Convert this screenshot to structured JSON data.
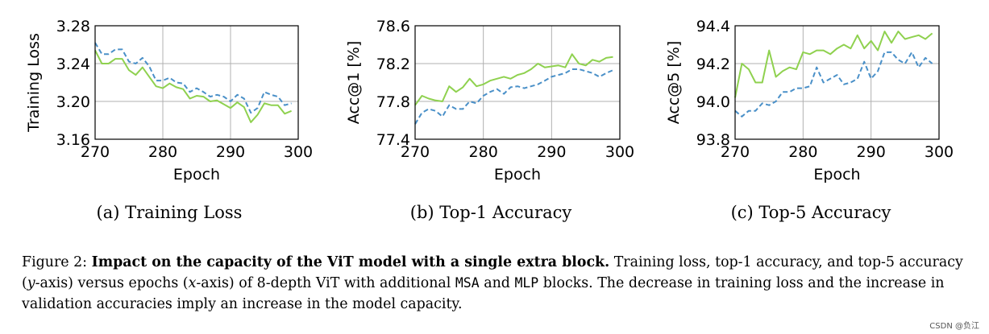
{
  "colors": {
    "series_a": "#8fd14f",
    "series_b": "#4a90c8"
  },
  "chart_data": [
    {
      "type": "line",
      "title": "",
      "subcaption": "(a) Training Loss",
      "xlabel": "Epoch",
      "ylabel": "Training Loss",
      "xlim": [
        270,
        300
      ],
      "ylim": [
        3.16,
        3.28
      ],
      "xticks": [
        270,
        280,
        290,
        300
      ],
      "yticks": [
        3.16,
        3.2,
        3.24,
        3.28
      ],
      "ytick_labels": [
        "3.16",
        "3.20",
        "3.24",
        "3.28"
      ],
      "x": [
        270,
        271,
        272,
        273,
        274,
        275,
        276,
        277,
        278,
        279,
        280,
        281,
        282,
        283,
        284,
        285,
        286,
        287,
        288,
        289,
        290,
        291,
        292,
        293,
        294,
        295,
        296,
        297,
        298,
        299
      ],
      "series": [
        {
          "name": "solid",
          "style": "solid",
          "values": [
            3.254,
            3.24,
            3.24,
            3.245,
            3.245,
            3.233,
            3.228,
            3.236,
            3.226,
            3.216,
            3.214,
            3.219,
            3.215,
            3.213,
            3.203,
            3.206,
            3.205,
            3.2,
            3.201,
            3.197,
            3.193,
            3.199,
            3.194,
            3.178,
            3.186,
            3.198,
            3.196,
            3.196,
            3.187,
            3.19
          ]
        },
        {
          "name": "dashed",
          "style": "dashed",
          "values": [
            3.262,
            3.25,
            3.25,
            3.255,
            3.255,
            3.242,
            3.24,
            3.246,
            3.237,
            3.222,
            3.222,
            3.225,
            3.22,
            3.219,
            3.21,
            3.214,
            3.21,
            3.205,
            3.207,
            3.205,
            3.2,
            3.207,
            3.203,
            3.188,
            3.193,
            3.21,
            3.207,
            3.205,
            3.196,
            3.198
          ]
        }
      ]
    },
    {
      "type": "line",
      "title": "",
      "subcaption": "(b) Top-1 Accuracy",
      "xlabel": "Epoch",
      "ylabel": "Acc@1 [%]",
      "xlim": [
        270,
        300
      ],
      "ylim": [
        77.4,
        78.6
      ],
      "xticks": [
        270,
        280,
        290,
        300
      ],
      "yticks": [
        77.4,
        77.8,
        78.2,
        78.6
      ],
      "ytick_labels": [
        "77.4",
        "77.8",
        "78.2",
        "78.6"
      ],
      "x": [
        270,
        271,
        272,
        273,
        274,
        275,
        276,
        277,
        278,
        279,
        280,
        281,
        282,
        283,
        284,
        285,
        286,
        287,
        288,
        289,
        290,
        291,
        292,
        293,
        294,
        295,
        296,
        297,
        298,
        299
      ],
      "series": [
        {
          "name": "solid",
          "style": "solid",
          "values": [
            77.76,
            77.86,
            77.83,
            77.81,
            77.8,
            77.96,
            77.9,
            77.95,
            78.04,
            77.96,
            77.98,
            78.02,
            78.04,
            78.06,
            78.04,
            78.08,
            78.1,
            78.14,
            78.2,
            78.16,
            78.17,
            78.18,
            78.16,
            78.3,
            78.2,
            78.18,
            78.24,
            78.22,
            78.26,
            78.27
          ]
        },
        {
          "name": "dashed",
          "style": "dashed",
          "values": [
            77.56,
            77.68,
            77.72,
            77.7,
            77.64,
            77.76,
            77.72,
            77.72,
            77.8,
            77.78,
            77.86,
            77.9,
            77.93,
            77.88,
            77.95,
            77.96,
            77.94,
            77.96,
            77.98,
            78.02,
            78.06,
            78.08,
            78.1,
            78.14,
            78.14,
            78.12,
            78.1,
            78.06,
            78.1,
            78.13
          ]
        }
      ]
    },
    {
      "type": "line",
      "title": "",
      "subcaption": "(c) Top-5 Accuracy",
      "xlabel": "Epoch",
      "ylabel": "Acc@5 [%]",
      "xlim": [
        270,
        300
      ],
      "ylim": [
        93.8,
        94.4
      ],
      "xticks": [
        270,
        280,
        290,
        300
      ],
      "yticks": [
        93.8,
        94.0,
        94.2,
        94.4
      ],
      "ytick_labels": [
        "93.8",
        "94.0",
        "94.2",
        "94.4"
      ],
      "x": [
        270,
        271,
        272,
        273,
        274,
        275,
        276,
        277,
        278,
        279,
        280,
        281,
        282,
        283,
        284,
        285,
        286,
        287,
        288,
        289,
        290,
        291,
        292,
        293,
        294,
        295,
        296,
        297,
        298,
        299
      ],
      "series": [
        {
          "name": "solid",
          "style": "solid",
          "values": [
            94.02,
            94.2,
            94.17,
            94.1,
            94.1,
            94.27,
            94.13,
            94.16,
            94.18,
            94.17,
            94.26,
            94.25,
            94.27,
            94.27,
            94.25,
            94.28,
            94.3,
            94.28,
            94.35,
            94.28,
            94.32,
            94.27,
            94.37,
            94.31,
            94.37,
            94.33,
            94.34,
            94.35,
            94.33,
            94.36
          ]
        },
        {
          "name": "dashed",
          "style": "dashed",
          "values": [
            93.95,
            93.92,
            93.95,
            93.95,
            93.99,
            93.98,
            94.0,
            94.05,
            94.05,
            94.07,
            94.07,
            94.08,
            94.18,
            94.1,
            94.12,
            94.14,
            94.09,
            94.1,
            94.12,
            94.21,
            94.12,
            94.16,
            94.26,
            94.26,
            94.22,
            94.2,
            94.26,
            94.18,
            94.23,
            94.2
          ]
        }
      ]
    }
  ],
  "caption": {
    "label": "Figure 2:",
    "bold": "Impact on the capacity of the ViT model with a single extra block.",
    "part1": "Training loss, top-1 accuracy, and top-5 accuracy (",
    "y_axis_var": "y",
    "part2": "-axis) versus epochs (",
    "x_axis_var": "x",
    "part3": "-axis) of 8-depth ViT with additional",
    "code1": "MSA",
    "and_word": "and",
    "code2": "MLP",
    "part4": "blocks. The decrease in training loss and the increase in validation accuracies imply an increase in the model capacity."
  },
  "watermark": "CSDN @负江"
}
